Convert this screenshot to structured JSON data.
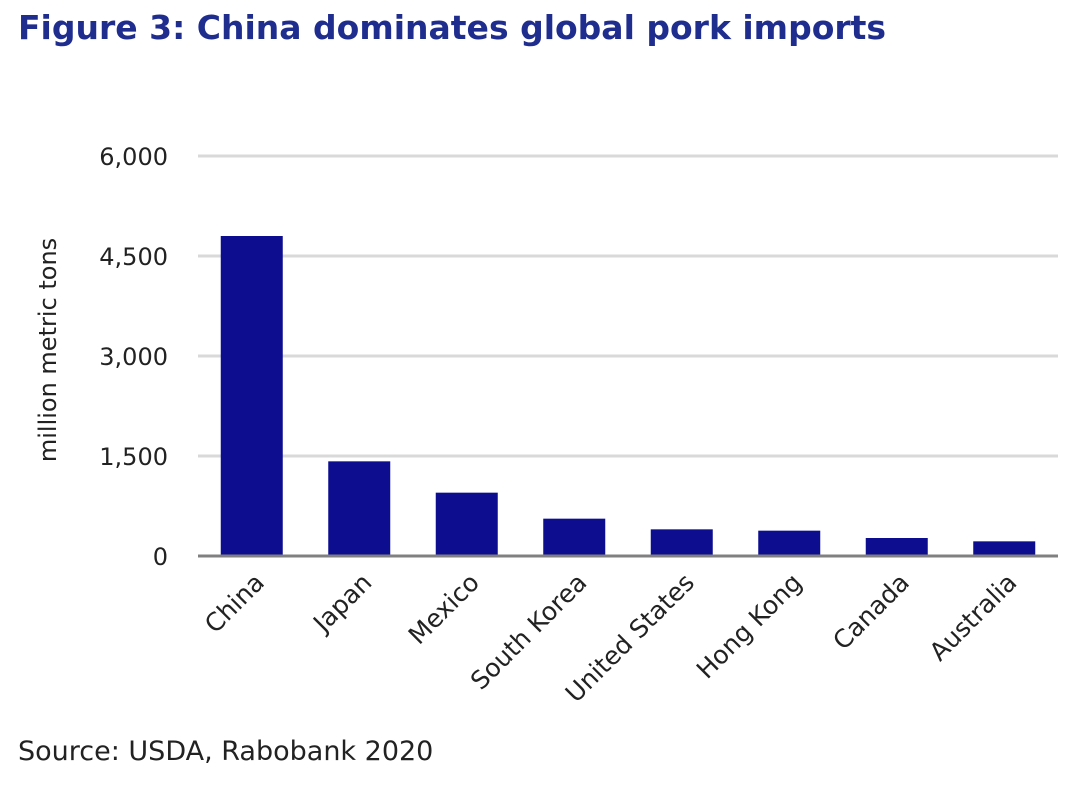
{
  "chart_data": {
    "type": "bar",
    "title": "Figure 3: China dominates global pork imports",
    "ylabel": "million metric tons",
    "xlabel": "",
    "categories": [
      "China",
      "Japan",
      "Mexico",
      "South Korea",
      "United States",
      "Hong Kong",
      "Canada",
      "Australia"
    ],
    "values": [
      4800,
      1420,
      950,
      560,
      400,
      380,
      270,
      220
    ],
    "ylim": [
      0,
      6000
    ],
    "yticks": [
      0,
      1500,
      3000,
      4500,
      6000
    ],
    "ytick_labels": [
      "0",
      "1,500",
      "3,000",
      "4,500",
      "6,000"
    ],
    "grid": true,
    "legend": "none",
    "bar_color": "#0d0d8f",
    "source": "Source: USDA, Rabobank 2020"
  },
  "colors": {
    "title": "#1f2d8f",
    "gridline": "#d9d9d9",
    "baseline": "#808080"
  }
}
